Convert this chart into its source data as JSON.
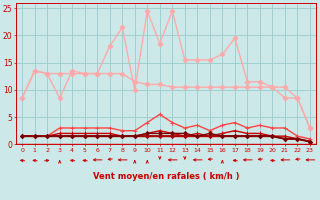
{
  "x": [
    0,
    1,
    2,
    3,
    4,
    5,
    6,
    7,
    8,
    9,
    10,
    11,
    12,
    13,
    14,
    15,
    16,
    17,
    18,
    19,
    20,
    21,
    22,
    23
  ],
  "xlabel": "Vent moyen/en rafales ( km/h )",
  "ylim": [
    0,
    26
  ],
  "yticks": [
    0,
    5,
    10,
    15,
    20,
    25
  ],
  "bg_color": "#cce8e8",
  "grid_color": "#99cccc",
  "series": [
    {
      "name": "rafales_max",
      "color": "#ffaaaa",
      "linewidth": 1.0,
      "marker": "D",
      "markersize": 2.5,
      "values": [
        8.5,
        13.5,
        13.0,
        8.5,
        13.5,
        13.0,
        13.0,
        18.0,
        21.5,
        10.0,
        24.5,
        18.5,
        24.5,
        15.5,
        15.5,
        15.5,
        16.5,
        19.5,
        11.5,
        11.5,
        10.5,
        8.5,
        8.5,
        3.0
      ]
    },
    {
      "name": "vent_moyen_max",
      "color": "#ffaaaa",
      "linewidth": 1.0,
      "marker": "D",
      "markersize": 2.5,
      "values": [
        8.5,
        13.5,
        13.0,
        13.0,
        13.0,
        13.0,
        13.0,
        13.0,
        13.0,
        11.5,
        11.0,
        11.0,
        10.5,
        10.5,
        10.5,
        10.5,
        10.5,
        10.5,
        10.5,
        10.5,
        10.5,
        10.5,
        8.5,
        3.0
      ]
    },
    {
      "name": "rafales_mean",
      "color": "#ff4444",
      "linewidth": 1.0,
      "marker": "+",
      "markersize": 3.5,
      "values": [
        1.5,
        1.5,
        1.5,
        3.0,
        3.0,
        3.0,
        3.0,
        3.0,
        2.5,
        2.5,
        4.0,
        5.5,
        4.0,
        3.0,
        3.5,
        2.5,
        3.5,
        4.0,
        3.0,
        3.5,
        3.0,
        3.0,
        1.5,
        1.0
      ]
    },
    {
      "name": "vent_moyen_mean",
      "color": "#cc0000",
      "linewidth": 1.0,
      "marker": "+",
      "markersize": 3.5,
      "values": [
        1.5,
        1.5,
        1.5,
        2.0,
        2.0,
        2.0,
        2.0,
        2.0,
        1.5,
        1.5,
        2.0,
        2.5,
        2.0,
        1.5,
        2.0,
        1.5,
        2.0,
        2.5,
        2.0,
        2.0,
        1.5,
        1.5,
        1.0,
        0.5
      ]
    },
    {
      "name": "vent_moyen_min",
      "color": "#aa0000",
      "linewidth": 1.5,
      "marker": "D",
      "markersize": 2.0,
      "values": [
        1.5,
        1.5,
        1.5,
        1.5,
        1.5,
        1.5,
        1.5,
        1.5,
        1.5,
        1.5,
        1.5,
        1.5,
        1.5,
        1.5,
        1.5,
        1.5,
        1.5,
        1.5,
        1.5,
        1.5,
        1.5,
        1.0,
        1.0,
        0.5
      ]
    },
    {
      "name": "rafales_min",
      "color": "#770000",
      "linewidth": 1.0,
      "marker": "D",
      "markersize": 2.0,
      "values": [
        1.5,
        1.5,
        1.5,
        1.5,
        1.5,
        1.5,
        1.5,
        1.5,
        1.5,
        1.5,
        2.0,
        2.0,
        2.0,
        2.0,
        1.5,
        2.0,
        1.5,
        1.5,
        1.5,
        1.5,
        1.5,
        1.0,
        1.0,
        0.5
      ]
    }
  ],
  "wind_angles_deg": [
    315,
    315,
    45,
    0,
    315,
    315,
    270,
    225,
    270,
    0,
    0,
    180,
    270,
    180,
    270,
    225,
    0,
    315,
    270,
    225,
    315,
    270,
    225,
    270
  ],
  "symbol_color": "#cc0000"
}
